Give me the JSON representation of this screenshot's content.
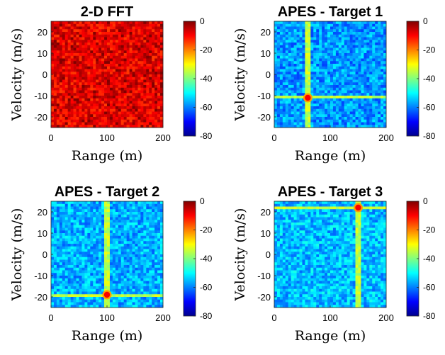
{
  "colormap": [
    "#00008f",
    "#0000ff",
    "#0080ff",
    "#00ffff",
    "#80ff80",
    "#ffff00",
    "#ff8000",
    "#ff0000",
    "#800000"
  ],
  "chart_data": [
    {
      "type": "heatmap",
      "title": "2-D FFT",
      "xlabel": "Range (m)",
      "ylabel": "Velocity (m/s)",
      "xlim": [
        0,
        200
      ],
      "ylim": [
        -25,
        25
      ],
      "xticks": [
        "0",
        "100",
        "200"
      ],
      "yticks": [
        "20",
        "10",
        "0",
        "-10",
        "-20"
      ],
      "clim": [
        -80,
        0
      ],
      "colorbar_ticks": [
        "0",
        "-20",
        "-40",
        "-60",
        "-80"
      ],
      "background_level_db": -8,
      "peak": null
    },
    {
      "type": "heatmap",
      "title": "APES - Target 1",
      "xlabel": "Range (m)",
      "ylabel": "Velocity (m/s)",
      "xlim": [
        0,
        200
      ],
      "ylim": [
        -25,
        25
      ],
      "xticks": [
        "0",
        "100",
        "200"
      ],
      "yticks": [
        "20",
        "10",
        "0",
        "-10",
        "-20"
      ],
      "clim": [
        -80,
        0
      ],
      "colorbar_ticks": [
        "0",
        "-20",
        "-40",
        "-60",
        "-80"
      ],
      "background_level_db": -58,
      "peak": {
        "range": 60,
        "velocity": -11,
        "level_db": 0
      }
    },
    {
      "type": "heatmap",
      "title": "APES - Target 2",
      "xlabel": "Range (m)",
      "ylabel": "Velocity (m/s)",
      "xlim": [
        0,
        200
      ],
      "ylim": [
        -25,
        25
      ],
      "xticks": [
        "0",
        "100",
        "200"
      ],
      "yticks": [
        "20",
        "10",
        "0",
        "-10",
        "-20"
      ],
      "clim": [
        -80,
        0
      ],
      "colorbar_ticks": [
        "0",
        "-20",
        "-40",
        "-60",
        "-80"
      ],
      "background_level_db": -56,
      "peak": {
        "range": 100,
        "velocity": -19,
        "level_db": 0
      }
    },
    {
      "type": "heatmap",
      "title": "APES - Target 3",
      "xlabel": "Range (m)",
      "ylabel": "Velocity (m/s)",
      "xlim": [
        0,
        200
      ],
      "ylim": [
        -25,
        25
      ],
      "xticks": [
        "0",
        "100",
        "200"
      ],
      "yticks": [
        "20",
        "10",
        "0",
        "-10",
        "-20"
      ],
      "clim": [
        -80,
        0
      ],
      "colorbar_ticks": [
        "0",
        "-20",
        "-40",
        "-60",
        "-80"
      ],
      "background_level_db": -55,
      "peak": {
        "range": 150,
        "velocity": 22,
        "level_db": 0
      }
    }
  ]
}
